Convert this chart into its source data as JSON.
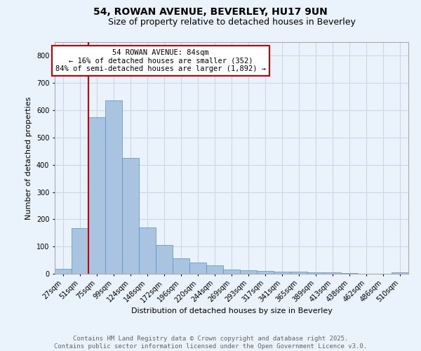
{
  "title_line1": "54, ROWAN AVENUE, BEVERLEY, HU17 9UN",
  "title_line2": "Size of property relative to detached houses in Beverley",
  "xlabel": "Distribution of detached houses by size in Beverley",
  "ylabel": "Number of detached properties",
  "bins": [
    "27sqm",
    "51sqm",
    "75sqm",
    "99sqm",
    "124sqm",
    "148sqm",
    "172sqm",
    "196sqm",
    "220sqm",
    "244sqm",
    "269sqm",
    "293sqm",
    "317sqm",
    "341sqm",
    "365sqm",
    "389sqm",
    "413sqm",
    "438sqm",
    "462sqm",
    "486sqm",
    "510sqm"
  ],
  "values": [
    18,
    168,
    575,
    635,
    425,
    170,
    105,
    57,
    42,
    32,
    15,
    12,
    10,
    9,
    7,
    5,
    4,
    2,
    1,
    1,
    6
  ],
  "bar_color": "#a8c4e0",
  "bar_edge_color": "#5a8fc0",
  "property_line_bin_index": 2,
  "property_line_label": "54 ROWAN AVENUE: 84sqm",
  "annotation_line2": "← 16% of detached houses are smaller (352)",
  "annotation_line3": "84% of semi-detached houses are larger (1,892) →",
  "annotation_box_color": "#ffffff",
  "annotation_box_edge": "#cc0000",
  "property_line_color": "#cc0000",
  "ylim": [
    0,
    850
  ],
  "yticks": [
    0,
    100,
    200,
    300,
    400,
    500,
    600,
    700,
    800
  ],
  "grid_color": "#c8d8e8",
  "background_color": "#eaf2fb",
  "footer_line1": "Contains HM Land Registry data © Crown copyright and database right 2025.",
  "footer_line2": "Contains public sector information licensed under the Open Government Licence v3.0.",
  "title_fontsize": 10,
  "subtitle_fontsize": 9,
  "axis_label_fontsize": 8,
  "tick_fontsize": 7,
  "footer_fontsize": 6.5,
  "annotation_fontsize": 7.5
}
